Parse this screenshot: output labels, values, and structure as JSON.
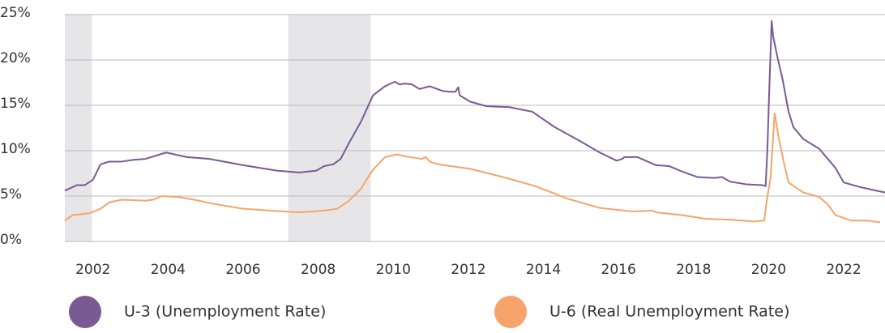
{
  "chart_data": {
    "type": "line",
    "xlim": [
      2001.25,
      2023.1
    ],
    "xticks": [
      2002,
      2004,
      2006,
      2008,
      2010,
      2012,
      2014,
      2016,
      2018,
      2020,
      2022
    ],
    "ylim": [
      0,
      25
    ],
    "yticks": [
      {
        "value": 0,
        "label": "0%"
      },
      {
        "value": 5,
        "label": "5%"
      },
      {
        "value": 10,
        "label": "10%"
      },
      {
        "value": 15,
        "label": "15%"
      },
      {
        "value": 20,
        "label": "20%"
      },
      {
        "value": 25,
        "label": "25%"
      }
    ],
    "grid": true,
    "shaded_ranges": [
      [
        2001.25,
        2001.97
      ],
      [
        2007.2,
        2009.4
      ]
    ],
    "shade_color": "#e6e6e8",
    "series": [
      {
        "name": "U-3 (Unemployment Rate)",
        "color": "#7a5a93",
        "x": [
          2001.25,
          2001.57,
          2001.78,
          2002,
          2002.2,
          2002.43,
          2002.76,
          2003.08,
          2003.4,
          2003.95,
          2004.5,
          2005.1,
          2006,
          2006.9,
          2007.5,
          2007.95,
          2008.16,
          2008.4,
          2008.6,
          2008.8,
          2009.14,
          2009.46,
          2009.78,
          2010.04,
          2010.17,
          2010.3,
          2010.5,
          2010.7,
          2010.97,
          2011.3,
          2011.5,
          2011.66,
          2011.73,
          2011.77,
          2012.05,
          2012.49,
          2013.1,
          2013.7,
          2014.3,
          2015,
          2015.5,
          2015.95,
          2016.1,
          2016.16,
          2016.5,
          2017,
          2017.35,
          2017.7,
          2018.1,
          2018.55,
          2018.76,
          2018.97,
          2019.4,
          2019.84,
          2019.92,
          2019.97,
          2020.01,
          2020.08,
          2020.12,
          2020.23,
          2020.38,
          2020.53,
          2020.66,
          2020.92,
          2021.35,
          2021.78,
          2022,
          2022.43,
          2022.86,
          2023.1
        ],
        "values": [
          5.6,
          6.2,
          6.2,
          6.8,
          8.5,
          8.8,
          8.8,
          9.0,
          9.1,
          9.8,
          9.3,
          9.1,
          8.4,
          7.8,
          7.6,
          7.8,
          8.3,
          8.5,
          9.1,
          10.7,
          13.2,
          16.1,
          17.1,
          17.6,
          17.3,
          17.4,
          17.3,
          16.8,
          17.1,
          16.6,
          16.5,
          16.5,
          17,
          16.1,
          15.4,
          14.9,
          14.8,
          14.3,
          12.6,
          11,
          9.8,
          8.9,
          9.1,
          9.3,
          9.3,
          8.4,
          8.3,
          7.7,
          7.1,
          7,
          7.1,
          6.6,
          6.3,
          6.2,
          6.1,
          10.5,
          15.9,
          24.3,
          22.6,
          20.4,
          17.7,
          14.3,
          12.6,
          11.3,
          10.2,
          8.1,
          6.5,
          6.0,
          5.6,
          5.4
        ]
      },
      {
        "name": "U-6 (Real Unemployment Rate)",
        "color": "#f6a46b",
        "x": [
          2001.25,
          2001.46,
          2001.9,
          2002.2,
          2002.43,
          2002.76,
          2003.4,
          2003.6,
          2003.84,
          2004.27,
          2004.7,
          2005.14,
          2006,
          2007.08,
          2007.5,
          2008.16,
          2008.5,
          2008.8,
          2009.14,
          2009.24,
          2009.46,
          2009.78,
          2010.1,
          2010.3,
          2010.76,
          2010.87,
          2010.97,
          2011.19,
          2012.05,
          2012.92,
          2013.78,
          2014.65,
          2015.5,
          2016.38,
          2016.9,
          2017,
          2017.7,
          2018.3,
          2018.97,
          2019.6,
          2019.88,
          2019.95,
          2020.05,
          2020.16,
          2020.27,
          2020.4,
          2020.53,
          2020.92,
          2021.35,
          2021.57,
          2021.78,
          2022.2,
          2022.64,
          2022.97
        ],
        "values": [
          2.3,
          2.9,
          3.1,
          3.6,
          4.3,
          4.6,
          4.5,
          4.6,
          5,
          4.9,
          4.6,
          4.2,
          3.6,
          3.3,
          3.2,
          3.4,
          3.6,
          4.4,
          5.8,
          6.5,
          7.9,
          9.3,
          9.6,
          9.4,
          9.1,
          9.3,
          8.8,
          8.5,
          8,
          7.1,
          6.1,
          4.7,
          3.7,
          3.3,
          3.4,
          3.2,
          2.9,
          2.5,
          2.4,
          2.2,
          2.3,
          4.5,
          7.0,
          14.1,
          11.4,
          8.8,
          6.5,
          5.4,
          4.9,
          4.1,
          2.9,
          2.3,
          2.3,
          2.1
        ]
      }
    ]
  }
}
